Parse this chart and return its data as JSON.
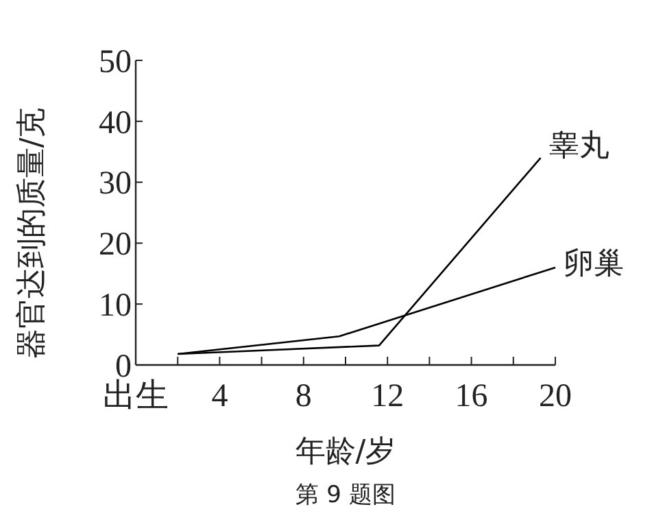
{
  "chart_data": {
    "type": "line",
    "xlabel": "年龄/岁",
    "ylabel": "器官达到的质量/克",
    "annotations": [
      "第 9 题图"
    ],
    "xlim": [
      0,
      20
    ],
    "xticks": [
      {
        "value": 0,
        "label": "出生"
      },
      {
        "value": 2,
        "label": null
      },
      4,
      {
        "value": 6,
        "label": null
      },
      8,
      {
        "value": 10,
        "label": null
      },
      12,
      {
        "value": 14,
        "label": null
      },
      16,
      {
        "value": 18,
        "label": null
      },
      20
    ],
    "ylim": [
      0,
      50
    ],
    "yticks": [
      0,
      10,
      20,
      30,
      40,
      50
    ],
    "grid": false,
    "marker": "none",
    "line_style": "solid",
    "series": [
      {
        "name": "睾丸",
        "color": "#000000",
        "x": [
          2,
          11.6,
          19.3
        ],
        "values": [
          1.8,
          3.2,
          34
        ]
      },
      {
        "name": "卵巢",
        "color": "#000000",
        "x": [
          2,
          9.7,
          20
        ],
        "values": [
          1.8,
          4.7,
          16
        ]
      }
    ]
  }
}
